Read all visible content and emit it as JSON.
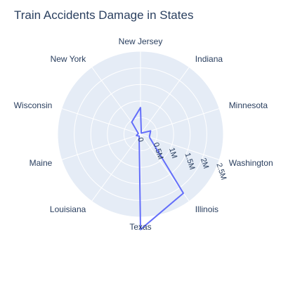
{
  "chart_data": {
    "type": "line",
    "subtype": "polar",
    "title": "Train Accidents Damage in States",
    "categories": [
      "Washington",
      "Illinois",
      "Texas",
      "Louisiana",
      "Maine",
      "Wisconsin",
      "New York",
      "New Jersey",
      "Indiana",
      "Minnesota"
    ],
    "series": [
      {
        "name": "",
        "color": "#636efa",
        "values": [
          280000,
          2200000,
          2900000,
          70000,
          130000,
          70000,
          450000,
          800000,
          40000,
          320000
        ]
      }
    ],
    "radial_axis": {
      "range": [
        0,
        2500000
      ],
      "tick_labels": [
        "0",
        "0.5M",
        "1M",
        "1.5M",
        "2M",
        "2.5M"
      ]
    },
    "grid": true,
    "polar_background": "#e5ecf6",
    "direction": "clockwise"
  }
}
